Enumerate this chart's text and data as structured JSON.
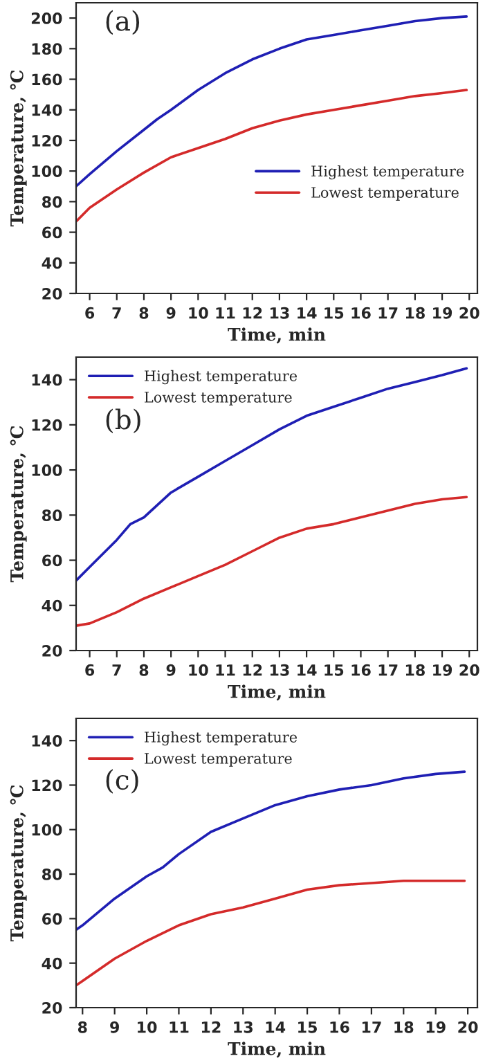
{
  "chart_data": [
    {
      "type": "line",
      "annotations": [
        "(a)"
      ],
      "xlabel": "Time, min",
      "ylabel": "Temperature, ℃",
      "xlim": [
        5.5,
        20.3
      ],
      "ylim": [
        20,
        210
      ],
      "xticks": [
        6,
        7,
        8,
        9,
        10,
        11,
        12,
        13,
        14,
        15,
        16,
        17,
        18,
        19,
        20
      ],
      "yticks": [
        20,
        40,
        60,
        80,
        100,
        120,
        140,
        160,
        180,
        200
      ],
      "legend": "center right",
      "grid": false,
      "series": [
        {
          "name": "Highest temperature",
          "color": "#1f1fb4",
          "x": [
            5.5,
            6,
            7,
            8,
            8.5,
            9,
            10,
            11,
            12,
            13,
            14,
            15,
            16,
            17,
            18,
            19,
            19.9
          ],
          "values": [
            90,
            98,
            113,
            127,
            134,
            140,
            153,
            164,
            173,
            180,
            186,
            189,
            192,
            195,
            198,
            200,
            201
          ]
        },
        {
          "name": "Lowest temperature",
          "color": "#d42a2a",
          "x": [
            5.5,
            6,
            7,
            8,
            9,
            10,
            11,
            12,
            13,
            14,
            15,
            16,
            17,
            18,
            19,
            19.9
          ],
          "values": [
            67,
            76,
            88,
            99,
            109,
            115,
            121,
            128,
            133,
            137,
            140,
            143,
            146,
            149,
            151,
            153
          ]
        }
      ]
    },
    {
      "type": "line",
      "annotations": [
        "(b)"
      ],
      "xlabel": "Time, min",
      "ylabel": "Temperature, ℃",
      "xlim": [
        5.5,
        20.3
      ],
      "ylim": [
        20,
        150
      ],
      "xticks": [
        6,
        7,
        8,
        9,
        10,
        11,
        12,
        13,
        14,
        15,
        16,
        17,
        18,
        19,
        20
      ],
      "yticks": [
        20,
        40,
        60,
        80,
        100,
        120,
        140
      ],
      "legend": "top left",
      "grid": false,
      "series": [
        {
          "name": "Highest temperature",
          "color": "#1f1fb4",
          "x": [
            5.5,
            6,
            7,
            7.5,
            8,
            9,
            10,
            11,
            12,
            13,
            14,
            15,
            16,
            17,
            18,
            19,
            19.9
          ],
          "values": [
            51,
            57,
            69,
            76,
            79,
            90,
            97,
            104,
            111,
            118,
            124,
            128,
            132,
            136,
            139,
            142,
            145
          ]
        },
        {
          "name": "Lowest temperature",
          "color": "#d42a2a",
          "x": [
            5.5,
            6,
            7,
            8,
            9,
            10,
            11,
            12,
            13,
            14,
            15,
            16,
            17,
            18,
            19,
            19.9
          ],
          "values": [
            31,
            32,
            37,
            43,
            48,
            53,
            58,
            64,
            70,
            74,
            76,
            79,
            82,
            85,
            87,
            88
          ]
        }
      ]
    },
    {
      "type": "line",
      "annotations": [
        "(c)"
      ],
      "xlabel": "Time, min",
      "ylabel": "Temperature, ℃",
      "xlim": [
        7.8,
        20.3
      ],
      "ylim": [
        20,
        150
      ],
      "xticks": [
        8,
        9,
        10,
        11,
        12,
        13,
        14,
        15,
        16,
        17,
        18,
        19,
        20
      ],
      "yticks": [
        20,
        40,
        60,
        80,
        100,
        120,
        140
      ],
      "legend": "top left",
      "grid": false,
      "series": [
        {
          "name": "Highest temperature",
          "color": "#1f1fb4",
          "x": [
            7.8,
            8,
            9,
            10,
            10.5,
            11,
            12,
            13,
            14,
            15,
            16,
            17,
            18,
            19,
            19.9
          ],
          "values": [
            55,
            57,
            69,
            79,
            83,
            89,
            99,
            105,
            111,
            115,
            118,
            120,
            123,
            125,
            126
          ]
        },
        {
          "name": "Lowest temperature",
          "color": "#d42a2a",
          "x": [
            7.8,
            8,
            9,
            10,
            11,
            12,
            13,
            14,
            15,
            16,
            17,
            18,
            19,
            19.9
          ],
          "values": [
            30,
            32,
            42,
            50,
            57,
            62,
            65,
            69,
            73,
            75,
            76,
            77,
            77,
            77
          ]
        }
      ]
    }
  ]
}
